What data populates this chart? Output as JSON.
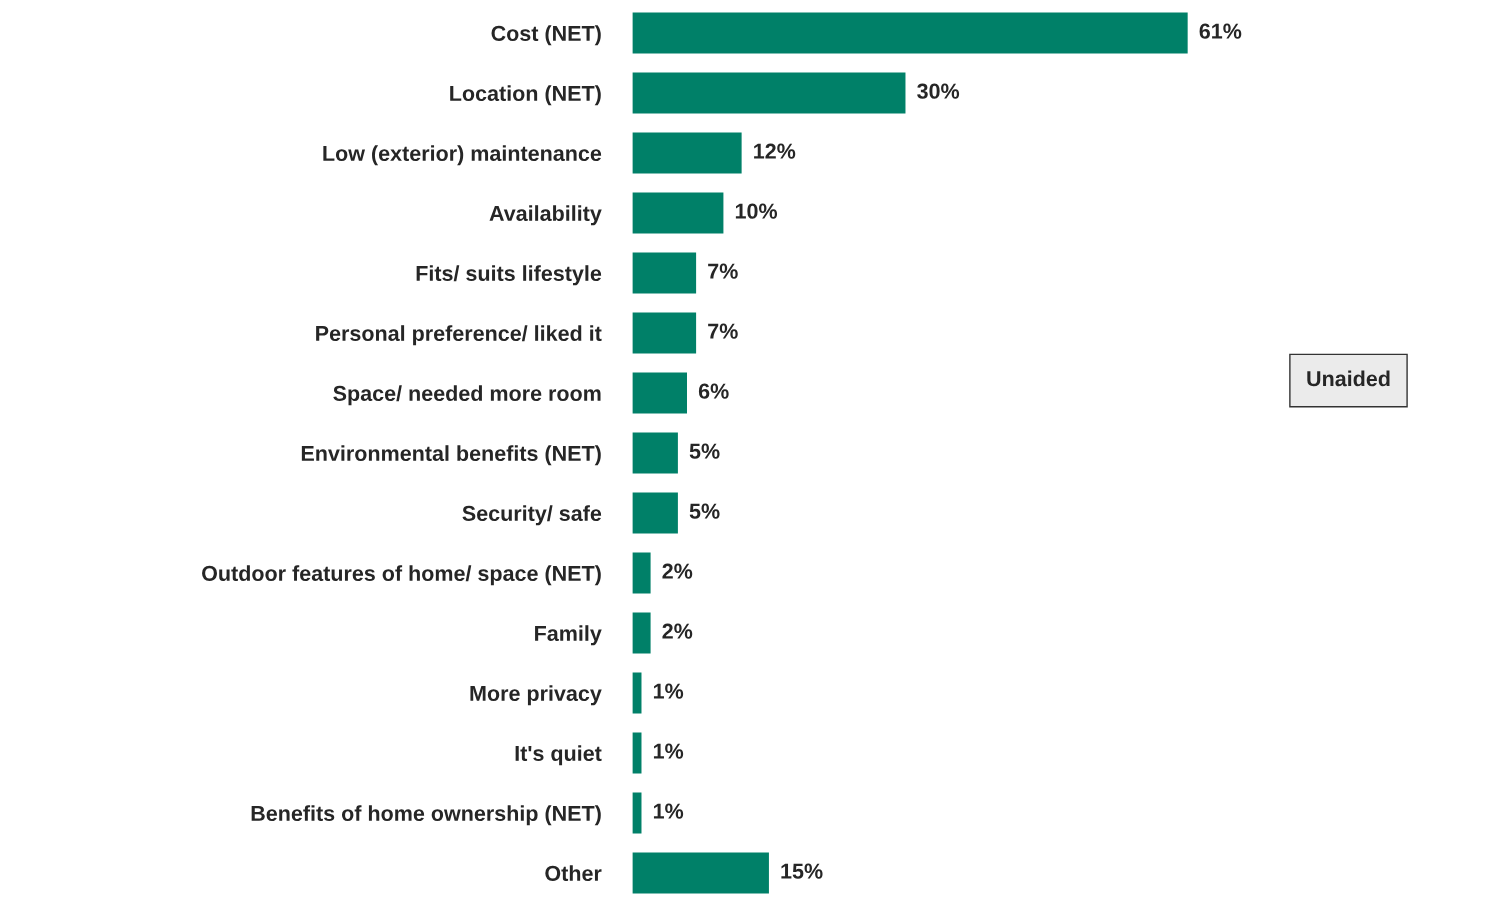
{
  "chart_data": {
    "type": "bar",
    "orientation": "horizontal",
    "categories": [
      "Cost (NET)",
      "Location (NET)",
      "Low (exterior) maintenance",
      "Availability",
      "Fits/ suits lifestyle",
      "Personal preference/ liked it",
      "Space/ needed more room",
      "Environmental benefits (NET)",
      "Security/ safe",
      "Outdoor features of home/ space (NET)",
      "Family",
      "More privacy",
      "It's quiet",
      "Benefits of home ownership (NET)",
      "Other"
    ],
    "values": [
      61,
      30,
      12,
      10,
      7,
      7,
      6,
      5,
      5,
      2,
      2,
      1,
      1,
      1,
      15
    ],
    "value_labels": [
      "61%",
      "30%",
      "12%",
      "10%",
      "7%",
      "7%",
      "6%",
      "5%",
      "5%",
      "2%",
      "2%",
      "1%",
      "1%",
      "1%",
      "15%"
    ],
    "color": "#008068",
    "tick_labels": "y",
    "grid": false,
    "legend": false,
    "annotations": [
      "Unaided"
    ]
  }
}
